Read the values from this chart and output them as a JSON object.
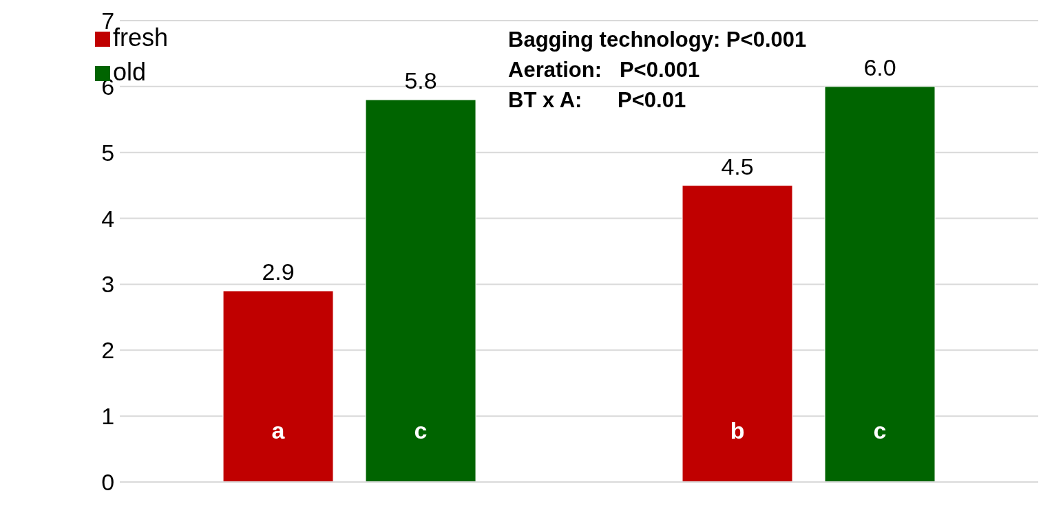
{
  "chart_data": {
    "type": "bar",
    "categories": [
      null,
      null
    ],
    "series": [
      {
        "name": "fresh",
        "color": "#c00000",
        "values": [
          2.9,
          4.5
        ],
        "value_labels": [
          "2.9",
          "4.5"
        ]
      },
      {
        "name": "old",
        "color": "#006400",
        "values": [
          5.8,
          6.0
        ],
        "value_labels": [
          "5.8",
          "6.0"
        ]
      }
    ],
    "ylim": [
      0,
      7
    ],
    "yticks": [
      0,
      1,
      2,
      3,
      4,
      5,
      6,
      7
    ],
    "grid": "y",
    "legend": "top left",
    "annotations": [
      "Bagging technology: P<0.001",
      "Aeration:   P<0.001",
      "BT x A:      P<0.01",
      "a",
      "c",
      "b",
      "c"
    ]
  }
}
